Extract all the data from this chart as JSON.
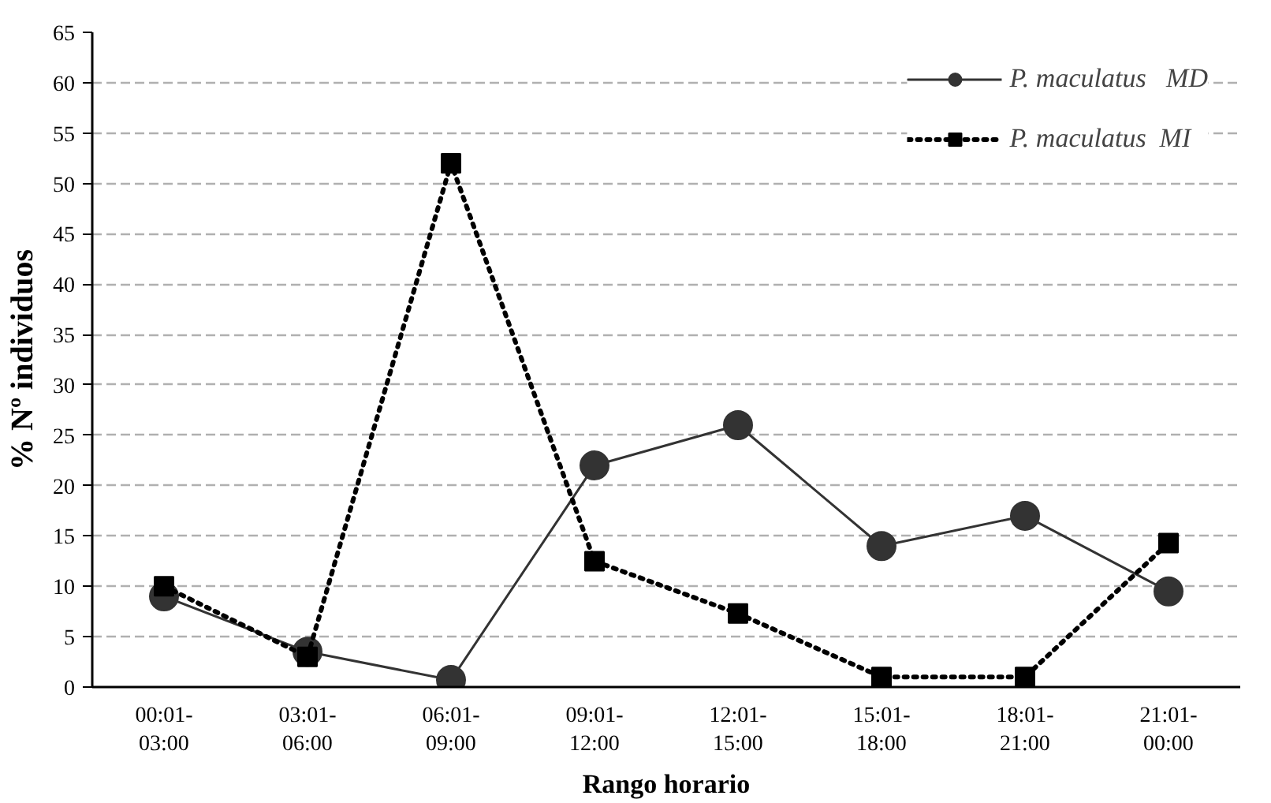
{
  "chart_data": {
    "type": "line",
    "xlabel": "Rango horario",
    "ylabel": "% Nº individuos",
    "categories": [
      "00:01-\n03:00",
      "03:01-\n06:00",
      "06:01-\n09:00",
      "09:01-\n12:00",
      "12:01-\n15:00",
      "15:01-\n18:00",
      "18:01-\n21:00",
      "21:01-\n00:00"
    ],
    "series": [
      {
        "name": "P. maculatus   MD",
        "color": "#333333",
        "marker": "circle",
        "line_style": "solid",
        "values": [
          9,
          3.5,
          0.7,
          22,
          26,
          14,
          17,
          9.5
        ]
      },
      {
        "name": "P. maculatus  MI",
        "color": "#000000",
        "marker": "square",
        "line_style": "dotted",
        "values": [
          10,
          3,
          52,
          12.5,
          7.3,
          1,
          1,
          14.3
        ]
      }
    ],
    "ylim": [
      0,
      65
    ],
    "yticks": [
      0,
      5,
      10,
      15,
      20,
      25,
      30,
      35,
      40,
      45,
      50,
      55,
      60,
      65
    ],
    "grid": "y",
    "legend": "top right"
  }
}
